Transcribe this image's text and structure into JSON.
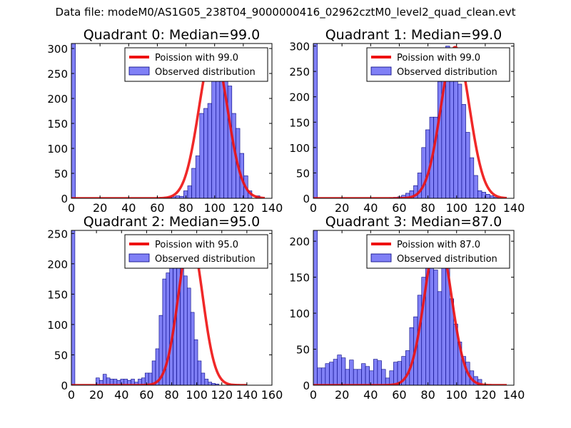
{
  "figure": {
    "suptitle": "Data file: modeM0/AS1G05_238T04_9000000416_02962cztM0_level2_quad_clean.evt"
  },
  "chart_data": [
    {
      "type": "bar",
      "title": "Quadrant 0: Median=99.0",
      "xlabel": "",
      "ylabel": "",
      "xlim": [
        0,
        140
      ],
      "ylim": [
        0,
        310
      ],
      "xticks": [
        0,
        20,
        40,
        60,
        80,
        100,
        120,
        140
      ],
      "yticks": [
        0,
        50,
        100,
        150,
        200,
        250,
        300
      ],
      "legend_position": "top-right",
      "legend": [
        "Poission with 99.0",
        "Observed distribution"
      ],
      "bin_width": 2.8,
      "bin_start": 0,
      "histogram_counts": [
        310,
        0,
        0,
        0,
        0,
        0,
        0,
        0,
        0,
        0,
        0,
        0,
        0,
        0,
        0,
        0,
        0,
        0,
        0,
        0,
        0,
        0,
        0,
        1,
        2,
        3,
        5,
        4,
        15,
        25,
        60,
        85,
        170,
        180,
        190,
        280,
        250,
        240,
        300,
        225,
        170,
        140,
        90,
        45,
        15,
        0,
        5,
        0,
        0,
        0
      ],
      "poisson_line": {
        "lambda": 99.0,
        "peak": 298,
        "x_from": 0,
        "x_to": 135
      }
    },
    {
      "type": "bar",
      "title": "Quadrant 1: Median=99.0",
      "xlabel": "",
      "ylabel": "",
      "xlim": [
        0,
        140
      ],
      "ylim": [
        0,
        305
      ],
      "xticks": [
        0,
        20,
        40,
        60,
        80,
        100,
        120,
        140
      ],
      "yticks": [
        0,
        50,
        100,
        150,
        200,
        250,
        300
      ],
      "legend_position": "top-right",
      "legend": [
        "Poission with 99.0",
        "Observed distribution"
      ],
      "bin_width": 2.8,
      "bin_start": 0,
      "histogram_counts": [
        305,
        0,
        0,
        0,
        0,
        0,
        0,
        0,
        0,
        0,
        0,
        0,
        0,
        0,
        0,
        0,
        0,
        0,
        0,
        1,
        2,
        3,
        6,
        10,
        15,
        25,
        50,
        100,
        135,
        160,
        160,
        230,
        265,
        300,
        290,
        240,
        225,
        185,
        130,
        80,
        45,
        15,
        12,
        8,
        5,
        2,
        0,
        0,
        0,
        0
      ],
      "poisson_line": {
        "lambda": 99.0,
        "peak": 298,
        "x_from": 0,
        "x_to": 135
      }
    },
    {
      "type": "bar",
      "title": "Quadrant 2: Median=95.0",
      "xlabel": "",
      "ylabel": "",
      "xlim": [
        0,
        160
      ],
      "ylim": [
        0,
        255
      ],
      "xticks": [
        0,
        20,
        40,
        60,
        80,
        100,
        120,
        140,
        160
      ],
      "yticks": [
        0,
        50,
        100,
        150,
        200,
        250
      ],
      "legend_position": "top-right",
      "legend": [
        "Poission with 95.0",
        "Observed distribution"
      ],
      "bin_width": 2.8,
      "bin_start": 0,
      "histogram_counts": [
        255,
        0,
        0,
        0,
        0,
        0,
        0,
        12,
        8,
        18,
        12,
        10,
        10,
        8,
        10,
        10,
        8,
        10,
        5,
        10,
        12,
        20,
        20,
        40,
        60,
        115,
        175,
        185,
        200,
        220,
        195,
        220,
        180,
        160,
        120,
        75,
        40,
        20,
        10,
        5,
        3,
        2,
        0,
        0,
        0,
        0,
        0,
        0,
        0,
        0
      ],
      "poisson_line": {
        "lambda": 95.0,
        "peak": 242,
        "x_from": 0,
        "x_to": 140
      }
    },
    {
      "type": "bar",
      "title": "Quadrant 3: Median=87.0",
      "xlabel": "",
      "ylabel": "",
      "xlim": [
        0,
        140
      ],
      "ylim": [
        0,
        215
      ],
      "xticks": [
        0,
        20,
        40,
        60,
        80,
        100,
        120,
        140
      ],
      "yticks": [
        0,
        50,
        100,
        150,
        200
      ],
      "legend_position": "top-right",
      "legend": [
        "Poission with 87.0",
        "Observed distribution"
      ],
      "bin_width": 2.8,
      "bin_start": 0,
      "histogram_counts": [
        215,
        24,
        24,
        30,
        32,
        36,
        42,
        38,
        22,
        35,
        22,
        22,
        30,
        26,
        20,
        36,
        34,
        22,
        10,
        20,
        32,
        33,
        40,
        48,
        80,
        95,
        125,
        150,
        180,
        185,
        160,
        130,
        175,
        165,
        120,
        85,
        60,
        40,
        32,
        20,
        12,
        8,
        0,
        0,
        0,
        0,
        0,
        0,
        0,
        0
      ],
      "poisson_line": {
        "lambda": 87.0,
        "peak": 207,
        "x_from": 0,
        "x_to": 135
      }
    }
  ],
  "colors": {
    "bar_fill": "#8080f6",
    "bar_edge": "#000080",
    "line": "#ee1111",
    "text": "#000000"
  }
}
